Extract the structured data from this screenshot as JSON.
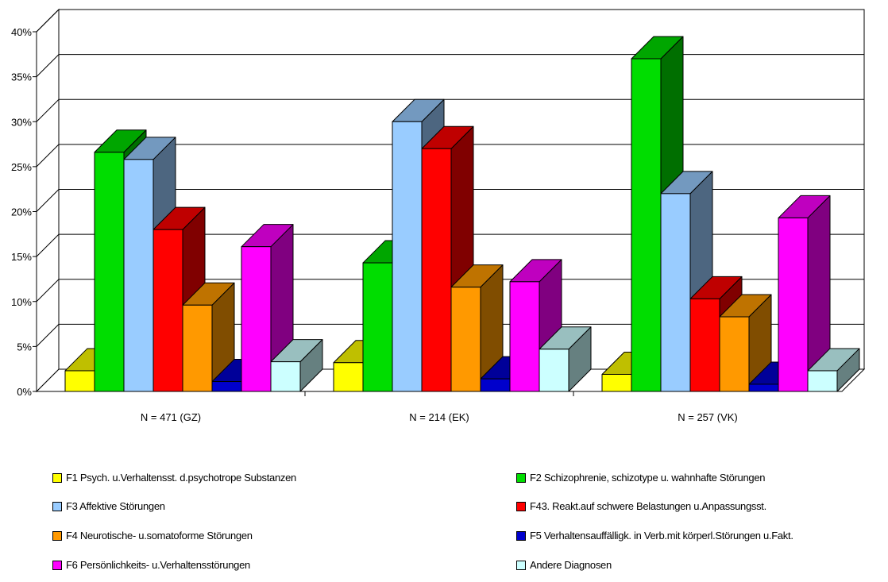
{
  "chart_data": {
    "type": "bar",
    "title": "",
    "xlabel": "",
    "ylabel": "",
    "ylim": [
      0,
      40
    ],
    "yticks": [
      "0%",
      "5%",
      "10%",
      "15%",
      "20%",
      "25%",
      "30%",
      "35%",
      "40%"
    ],
    "grid": true,
    "legend_position": "bottom",
    "categories": [
      "N = 471  (GZ)",
      "N = 214  (EK)",
      "N = 257  (VK)"
    ],
    "series": [
      {
        "name": "F1  Psych. u.Verhaltensst. d.psychotrope Substanzen",
        "color": "#ffff00",
        "values": [
          2.3,
          3.2,
          1.9
        ]
      },
      {
        "name": "F2  Schizophrenie, schizotype u. wahnhafte Störungen",
        "color": "#00dd00",
        "values": [
          26.6,
          14.3,
          37.0
        ]
      },
      {
        "name": "F3 Affektive Störungen",
        "color": "#99ccff",
        "values": [
          25.8,
          30.0,
          22.0
        ]
      },
      {
        "name": "F43. Reakt.auf schwere Belastungen u.Anpassungsst.",
        "color": "#ff0000",
        "values": [
          18.0,
          27.0,
          10.3
        ]
      },
      {
        "name": "F4 Neurotische- u.somatoforme Störungen",
        "color": "#ff9900",
        "values": [
          9.6,
          11.6,
          8.3
        ]
      },
      {
        "name": "F5 Verhaltensauffälligk. in Verb.mit körperl.Störungen u.Fakt.",
        "color": "#0000cc",
        "values": [
          1.1,
          1.4,
          0.8
        ]
      },
      {
        "name": "F6 Persönlichkeits- u.Verhaltensstörungen",
        "color": "#ff00ff",
        "values": [
          16.1,
          12.2,
          19.3
        ]
      },
      {
        "name": "Andere Diagnosen",
        "color": "#ccffff",
        "values": [
          3.3,
          4.7,
          2.3
        ]
      }
    ]
  }
}
